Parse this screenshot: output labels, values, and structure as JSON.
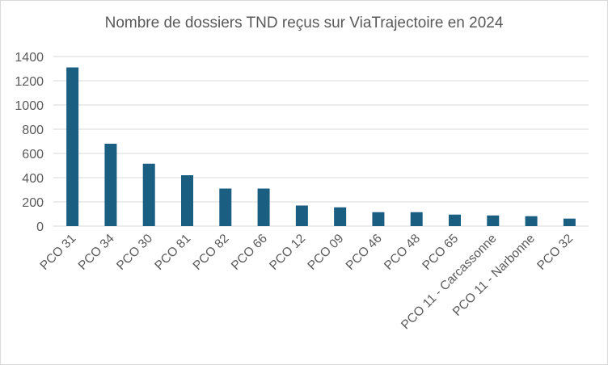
{
  "chart_data": {
    "type": "bar",
    "title": "Nombre de dossiers TND reçus sur ViaTrajectoire en 2024",
    "xlabel": "",
    "ylabel": "",
    "categories": [
      "PCO 31",
      "PCO 34",
      "PCO 30",
      "PCO 81",
      "PCO 82",
      "PCO 66",
      "PCO 12",
      "PCO 09",
      "PCO 46",
      "PCO 48",
      "PCO 65",
      "PCO 11 - Carcassonne",
      "PCO 11 - Narbonne",
      "PCO 32"
    ],
    "values": [
      1310,
      680,
      515,
      420,
      310,
      310,
      170,
      155,
      115,
      115,
      95,
      88,
      82,
      62
    ],
    "ylim": [
      0,
      1400
    ],
    "yticks": [
      0,
      200,
      400,
      600,
      800,
      1000,
      1200,
      1400
    ],
    "grid": true,
    "legend": "none",
    "bar_color": "#1a5e82",
    "grid_color": "#d9d9d9"
  }
}
